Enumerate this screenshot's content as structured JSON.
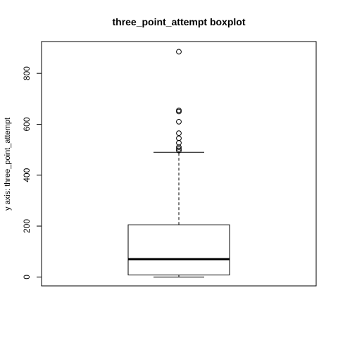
{
  "chart_data": {
    "type": "box",
    "title": "three_point_attempt boxplot",
    "xlabel": "",
    "ylabel": "y axis: three_point_attempt",
    "ylim": [
      -35,
      925
    ],
    "yticks": [
      0,
      200,
      400,
      600,
      800
    ],
    "grid": false,
    "legend": "none",
    "box": {
      "min": 0,
      "q1": 8,
      "median": 70,
      "q3": 205,
      "whisker_low": 0,
      "whisker_high": 490,
      "outliers": [
        497,
        503,
        510,
        527,
        545,
        565,
        610,
        650,
        655,
        885
      ]
    },
    "colors": {
      "background": "#ffffff",
      "stroke": "#000000"
    }
  }
}
